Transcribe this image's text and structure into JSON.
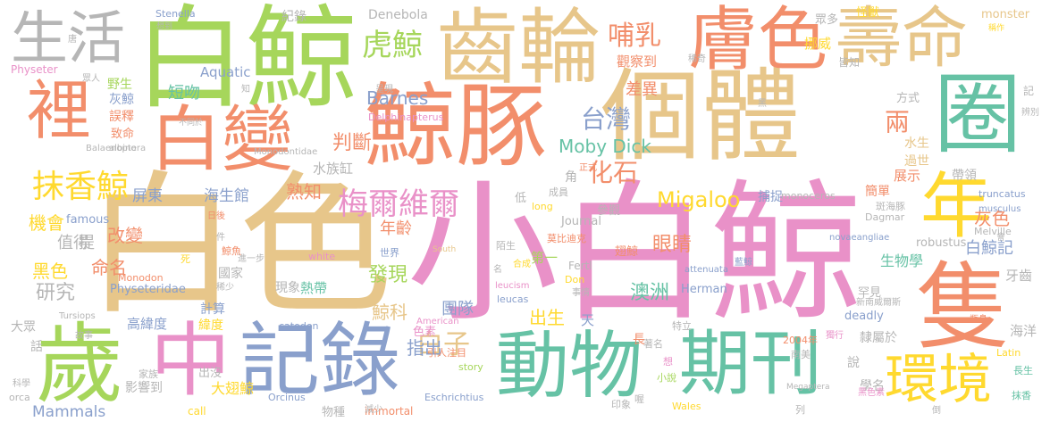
{
  "words": [
    "小白鯨",
    "白色",
    "白鯨",
    "鯨豚",
    "個體",
    "齒輪",
    "膚色",
    "壽命",
    "白變",
    "生活",
    "裡",
    "圈",
    "隻",
    "年",
    "歲",
    "中",
    "記錄",
    "動物",
    "期刊",
    "環境",
    "抹香鯨",
    "虎鯨",
    "哺乳",
    "台灣",
    "梅爾維爾",
    "白子",
    "兩",
    "化石",
    "Migaloo",
    "Moby Dick",
    "Barnes",
    "差異",
    "判斷",
    "熟知",
    "眼睛",
    "灰色",
    "白鯨記",
    "生物學",
    "澳洲",
    "發現",
    "年齡",
    "鯨科",
    "團隊",
    "出生",
    "指出",
    "改變",
    "命名",
    "研究",
    "機會",
    "黑色",
    "屏東",
    "海生館",
    "短吻",
    "灰鯨",
    "野生",
    "誤釋",
    "致命",
    "水族缸",
    "Aquatic",
    "Denebola",
    "Delphinapterus",
    "紀錄",
    "觀察到",
    "挪威",
    "罕見",
    "記",
    "牙齒",
    "海洋",
    "隸屬於",
    "學名",
    "說",
    "長",
    "色素",
    "天",
    "高緯度",
    "大眾",
    "話",
    "計算",
    "緯度",
    "熱帶",
    "現象",
    "國家",
    "捕捉",
    "簡單",
    "過世",
    "水生",
    "展示",
    "帶領",
    "方式",
    "怪獸",
    "眾多",
    "皆知",
    "Physeter",
    "Stenella",
    "monster",
    "truncatus",
    "musculus",
    "Melville",
    "robustus",
    "novaeangliae",
    "Dagmar",
    "monoceros",
    "Herman",
    "Fertl",
    "leucas",
    "leucism",
    "attenuata",
    "Don",
    "catodon",
    "American",
    "Journal",
    "long",
    "white",
    "South",
    "Orcinus",
    "Eschrichtius",
    "immortal",
    "story",
    "Mammals",
    "Tursiops",
    "Monodon",
    "Physeteridae",
    "Monodontidae",
    "Balaenoptera",
    "famous",
    "orca",
    "call",
    "deadly",
    "Latin",
    "Megaptera",
    "大翅鯨",
    "影響到",
    "出沒",
    "家族",
    "物種",
    "引人注目",
    "第一",
    "莫比迪克",
    "翅鯨",
    "藍鯨",
    "著名",
    "事情",
    "印象",
    "小說",
    "世界",
    "成員",
    "參觀",
    "合成",
    "低",
    "角",
    "值得",
    "提",
    "鯨魚",
    "死",
    "科學",
    "故事",
    "斑海豚",
    "新南威爾斯",
    "南美",
    "黑色素",
    "正式",
    "不同於",
    "albino",
    "陌生",
    "長生",
    "抹香",
    "2004年",
    "瓶鼻",
    "獨行",
    "想",
    "喔",
    "列",
    "特立",
    "Wales",
    "進一步",
    "稀少",
    "知",
    "唐",
    "呈現",
    "想到",
    "眾人",
    "日後",
    "件",
    "名",
    "減少",
    "倒",
    "辨別",
    "稱作",
    "黑",
    "稀奇",
    "會"
  ]
}
